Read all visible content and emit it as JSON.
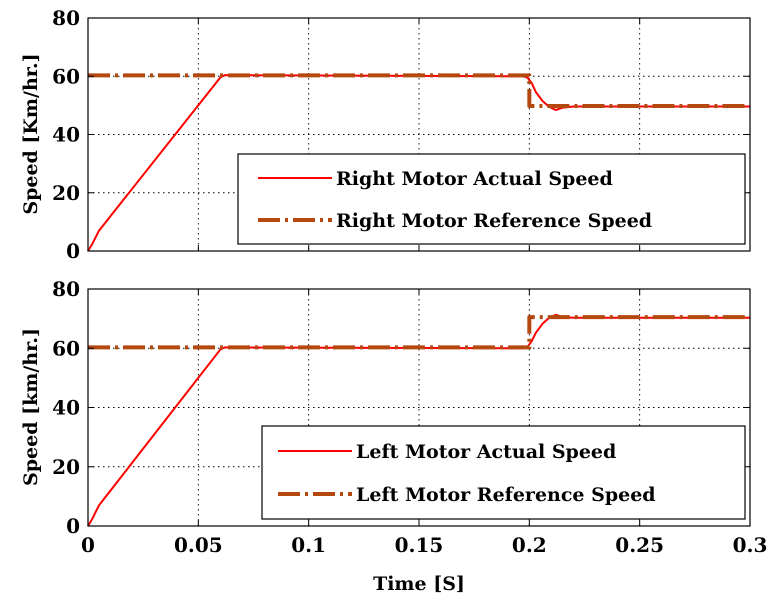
{
  "chart_data": [
    {
      "type": "line",
      "ylabel": "Speed [Km/hr.]",
      "xlim": [
        0,
        0.3
      ],
      "ylim": [
        0,
        80
      ],
      "xticks": [
        "0",
        "0.05",
        "0.1",
        "0.15",
        "0.2",
        "0.25",
        "0.3"
      ],
      "yticks": [
        "0",
        "20",
        "40",
        "60",
        "80"
      ],
      "show_xtick_labels": false,
      "grid": true,
      "legend_position": "bottom-right",
      "series": [
        {
          "name": "Right Motor Actual Speed",
          "color": "#ff0000",
          "style": "solid",
          "x": [
            0,
            0.002,
            0.005,
            0.06,
            0.062,
            0.197,
            0.199,
            0.201,
            0.203,
            0.206,
            0.209,
            0.212,
            0.215,
            0.22,
            0.3
          ],
          "y": [
            0,
            2.5,
            7,
            59.6,
            60.4,
            60,
            59.6,
            57.8,
            54.5,
            51.5,
            49.5,
            48.4,
            49.2,
            49.6,
            49.6
          ]
        },
        {
          "name": "Right Motor Reference Speed",
          "color": "#b5480f",
          "style": "dashdot",
          "x": [
            0,
            0.2,
            0.2,
            0.3
          ],
          "y": [
            60.3,
            60.3,
            49.8,
            49.8
          ]
        }
      ]
    },
    {
      "type": "line",
      "ylabel": "Speed [km/hr.]",
      "xlabel": "Time [S]",
      "xlim": [
        0,
        0.3
      ],
      "ylim": [
        0,
        80
      ],
      "xticks": [
        "0",
        "0.05",
        "0.1",
        "0.15",
        "0.2",
        "0.25",
        "0.3"
      ],
      "yticks": [
        "0",
        "20",
        "40",
        "60",
        "80"
      ],
      "show_xtick_labels": true,
      "grid": true,
      "legend_position": "bottom-right",
      "series": [
        {
          "name": "Left Motor Actual Speed",
          "color": "#ff0000",
          "style": "solid",
          "x": [
            0,
            0.002,
            0.005,
            0.06,
            0.062,
            0.197,
            0.199,
            0.201,
            0.203,
            0.206,
            0.209,
            0.212,
            0.215,
            0.22,
            0.3
          ],
          "y": [
            0,
            2.5,
            7,
            59.6,
            60.3,
            60,
            60.3,
            62.3,
            65.3,
            68.3,
            70.3,
            71.3,
            70.6,
            70.3,
            70.3
          ]
        },
        {
          "name": "Left Motor Reference Speed",
          "color": "#b5480f",
          "style": "dashdot",
          "x": [
            0,
            0.2,
            0.2,
            0.3
          ],
          "y": [
            60.3,
            60.3,
            70.5,
            70.5
          ]
        }
      ]
    }
  ]
}
